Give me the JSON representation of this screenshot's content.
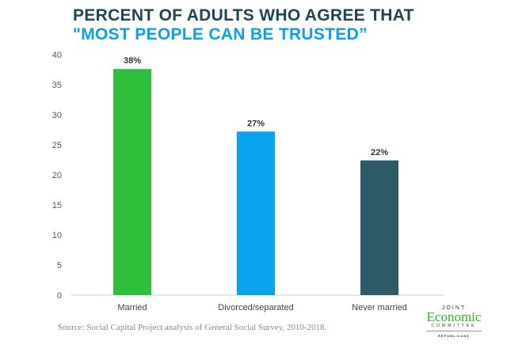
{
  "chart_data": {
    "type": "bar",
    "title": "PERCENT OF ADULTS WHO AGREE THAT",
    "subtitle": "\"MOST PEOPLE CAN BE TRUSTED”",
    "categories": [
      "Married",
      "Divorced/separated",
      "Never married"
    ],
    "values": [
      37.6,
      27.2,
      22.4
    ],
    "data_labels": [
      "38%",
      "27%",
      "22%"
    ],
    "colors": [
      "#2fbf3a",
      "#0aa3ee",
      "#2d5a66"
    ],
    "ylim": [
      0,
      40
    ],
    "yticks": [
      0,
      5,
      10,
      15,
      20,
      25,
      30,
      35,
      40
    ],
    "xlabel": "",
    "ylabel": "",
    "source": "Source: Social Capital Project analysis of General Social Survey, 2010-2018."
  },
  "logo": {
    "joint": "JOINT",
    "economic": "Economic",
    "committee": "COMMITTEE",
    "republicans": "REPUBLICANS"
  }
}
